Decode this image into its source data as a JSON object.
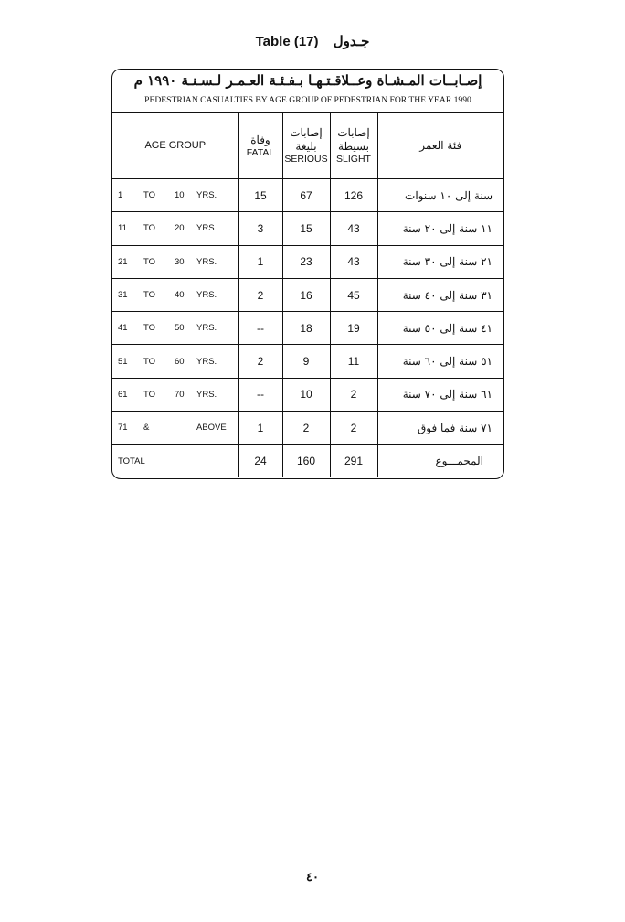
{
  "header": {
    "title_en": "Table (17)",
    "title_ar": "جـدول"
  },
  "table": {
    "title_ar": "إصـابــات المـشـاة وعــلاقـتـهـا بـفـئـة العـمـر لـسـنـة ١٩٩٠ م",
    "title_en": "PEDESTRIAN CASUALTIES  BY AGE GROUP OF PEDESTRIAN FOR THE YEAR 1990",
    "columns": {
      "age_group": "AGE GROUP",
      "fatal_ar": "وفاة",
      "fatal_en": "FATAL",
      "serious_ar": "إصابات بليغة",
      "serious_en": "SERIOUS",
      "slight_ar": "إصابات بسيطة",
      "slight_en": "SLIGHT",
      "age_group_ar": "فئة العمر"
    },
    "rows": [
      {
        "from": "1",
        "sep": "TO",
        "to": "10",
        "unit": "YRS.",
        "fatal": "15",
        "serious": "67",
        "slight": "126",
        "age_ar": "سنة إلى ١٠ سنوات"
      },
      {
        "from": "11",
        "sep": "TO",
        "to": "20",
        "unit": "YRS.",
        "fatal": "3",
        "serious": "15",
        "slight": "43",
        "age_ar": "١١ سنة إلى ٢٠ سنة"
      },
      {
        "from": "21",
        "sep": "TO",
        "to": "30",
        "unit": "YRS.",
        "fatal": "1",
        "serious": "23",
        "slight": "43",
        "age_ar": "٢١ سنة إلى ٣٠ سنة"
      },
      {
        "from": "31",
        "sep": "TO",
        "to": "40",
        "unit": "YRS.",
        "fatal": "2",
        "serious": "16",
        "slight": "45",
        "age_ar": "٣١ سنة إلى ٤٠ سنة"
      },
      {
        "from": "41",
        "sep": "TO",
        "to": "50",
        "unit": "YRS.",
        "fatal": "--",
        "serious": "18",
        "slight": "19",
        "age_ar": "٤١ سنة إلى ٥٠ سنة"
      },
      {
        "from": "51",
        "sep": "TO",
        "to": "60",
        "unit": "YRS.",
        "fatal": "2",
        "serious": "9",
        "slight": "11",
        "age_ar": "٥١ سنة إلى ٦٠ سنة"
      },
      {
        "from": "61",
        "sep": "TO",
        "to": "70",
        "unit": "YRS.",
        "fatal": "--",
        "serious": "10",
        "slight": "2",
        "age_ar": "٦١ سنة إلى ٧٠ سنة"
      },
      {
        "from": "71",
        "sep": "&",
        "to": "",
        "unit": "ABOVE",
        "fatal": "1",
        "serious": "2",
        "slight": "2",
        "age_ar": "٧١ سنة  فما فوق"
      }
    ],
    "total": {
      "label": "TOTAL",
      "fatal": "24",
      "serious": "160",
      "slight": "291",
      "label_ar": "المجمـــوع"
    }
  },
  "footer": {
    "page_number": "٤٠"
  }
}
